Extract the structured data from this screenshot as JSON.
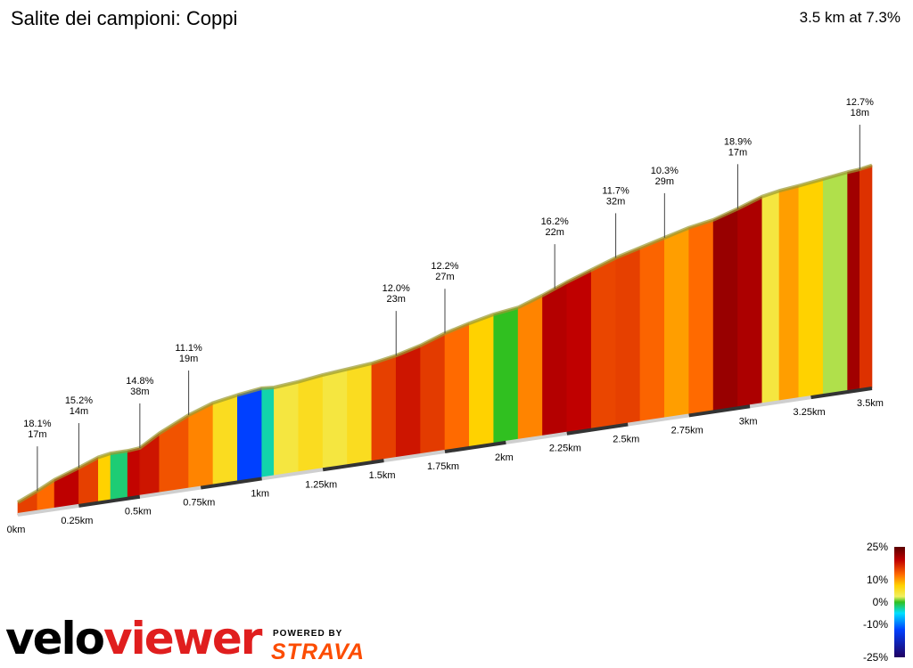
{
  "header": {
    "title": "Salite dei campioni: Coppi",
    "summary": "3.5 km at 7.3%"
  },
  "branding": {
    "velo": "velo",
    "viewer": "viewer",
    "powered_by": "POWERED BY",
    "strava": "STRAVA"
  },
  "chart_data": {
    "type": "area",
    "title": "Salite dei campioni: Coppi",
    "total_distance_km": 3.5,
    "avg_gradient_pct": 7.3,
    "x_tick_labels": [
      "0km",
      "0.25km",
      "0.5km",
      "0.75km",
      "1km",
      "1.25km",
      "1.5km",
      "1.75km",
      "2km",
      "2.25km",
      "2.5km",
      "2.75km",
      "3km",
      "3.25km",
      "3.5km"
    ],
    "x_ticks_km": [
      0,
      0.25,
      0.5,
      0.75,
      1,
      1.25,
      1.5,
      1.75,
      2,
      2.25,
      2.5,
      2.75,
      3,
      3.25,
      3.5
    ],
    "profile": {
      "x_km": [
        0,
        0.08,
        0.15,
        0.25,
        0.33,
        0.38,
        0.45,
        0.5,
        0.58,
        0.7,
        0.8,
        0.9,
        1.0,
        1.05,
        1.15,
        1.25,
        1.35,
        1.45,
        1.55,
        1.65,
        1.75,
        1.85,
        1.95,
        2.05,
        2.15,
        2.25,
        2.35,
        2.45,
        2.55,
        2.65,
        2.75,
        2.85,
        2.95,
        3.05,
        3.12,
        3.2,
        3.3,
        3.4,
        3.45,
        3.5
      ],
      "elevation_m": [
        0,
        8,
        16,
        24,
        31,
        33,
        33,
        34,
        45,
        58,
        66,
        70,
        73,
        72,
        74,
        77,
        79,
        81,
        85,
        91,
        99,
        105,
        110,
        113,
        121,
        130,
        138,
        146,
        152,
        158,
        164,
        168,
        175,
        183,
        186,
        188,
        191,
        194,
        195,
        197
      ],
      "gradient_pct": [
        18.1,
        12,
        10,
        15.2,
        12,
        6,
        -3,
        14.8,
        14,
        11.1,
        9,
        5,
        -15,
        -5,
        4,
        5,
        4,
        5,
        12.0,
        14,
        12.2,
        10,
        6,
        0,
        9,
        16.2,
        15,
        11.7,
        12,
        10.3,
        8,
        10,
        18.9,
        17,
        4,
        8,
        6,
        2,
        18,
        12.7
      ]
    },
    "annotations": [
      {
        "km": 0.08,
        "gradient": "18.1%",
        "length": "17m"
      },
      {
        "km": 0.25,
        "gradient": "15.2%",
        "length": "14m"
      },
      {
        "km": 0.5,
        "gradient": "14.8%",
        "length": "38m"
      },
      {
        "km": 0.7,
        "gradient": "11.1%",
        "length": "19m"
      },
      {
        "km": 1.55,
        "gradient": "12.0%",
        "length": "23m"
      },
      {
        "km": 1.75,
        "gradient": "12.2%",
        "length": "27m"
      },
      {
        "km": 2.2,
        "gradient": "16.2%",
        "length": "22m"
      },
      {
        "km": 2.45,
        "gradient": "11.7%",
        "length": "32m"
      },
      {
        "km": 2.65,
        "gradient": "10.3%",
        "length": "29m"
      },
      {
        "km": 2.95,
        "gradient": "18.9%",
        "length": "17m"
      },
      {
        "km": 3.45,
        "gradient": "12.7%",
        "length": "18m"
      }
    ],
    "color_scale": {
      "labels": [
        "25%",
        "10%",
        "0%",
        "-10%",
        "-25%"
      ],
      "values": [
        25,
        10,
        0,
        -10,
        -25
      ]
    }
  }
}
